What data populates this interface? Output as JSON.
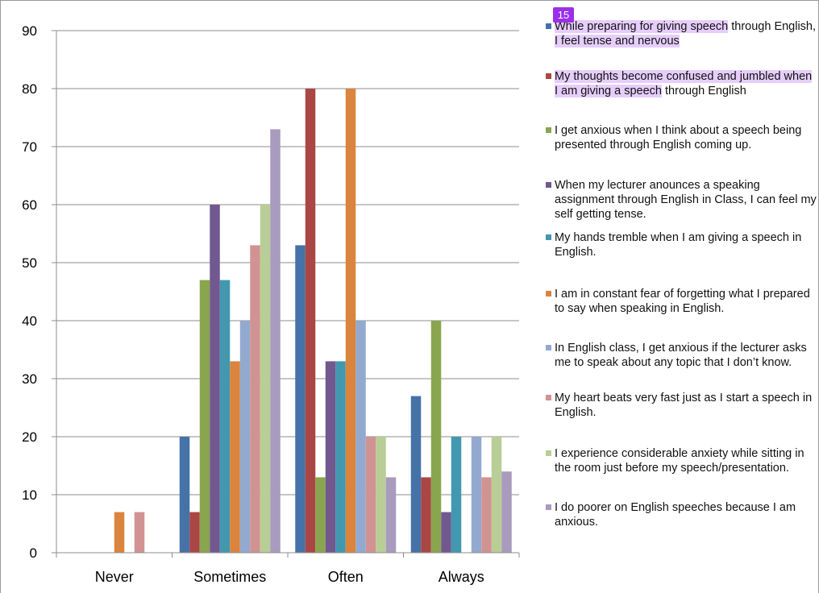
{
  "page_badge": "15",
  "chart_data": {
    "type": "bar",
    "categories": [
      "Never",
      "Sometimes",
      "Often",
      "Always"
    ],
    "ylim": [
      0,
      90
    ],
    "yticks": [
      0,
      10,
      20,
      30,
      40,
      50,
      60,
      70,
      80,
      90
    ],
    "grid": true,
    "legend_position": "right",
    "series": [
      {
        "name": "While preparing for giving speech through English, I feel tense and nervous",
        "color": "#4572a7",
        "values": [
          0,
          20,
          53,
          27
        ]
      },
      {
        "name": "My thoughts become confused and jumbled when I am giving a speech through English",
        "color": "#aa4643",
        "values": [
          0,
          7,
          80,
          13
        ]
      },
      {
        "name": "I get anxious when I think about a speech being presented through English coming up.",
        "color": "#89a54e",
        "values": [
          0,
          47,
          13,
          40
        ]
      },
      {
        "name": "When my lecturer anounces a speaking assignment through English in Class, I can feel my self getting tense.",
        "color": "#71588f",
        "values": [
          0,
          60,
          33,
          7
        ]
      },
      {
        "name": "My hands tremble when I am giving a speech in English.",
        "color": "#4198af",
        "values": [
          0,
          47,
          33,
          20
        ]
      },
      {
        "name": "I am in constant fear of forgetting what I prepared to say when speaking in English.",
        "color": "#db843d",
        "values": [
          7,
          33,
          80,
          0
        ]
      },
      {
        "name": "In English class, I get anxious if the lecturer asks me to speak about any topic that I don’t know.",
        "color": "#93a9cf",
        "values": [
          0,
          40,
          40,
          20
        ]
      },
      {
        "name": "My heart beats very fast just as I start a speech in English.",
        "color": "#d19392",
        "values": [
          7,
          53,
          20,
          13
        ]
      },
      {
        "name": "I experience considerable anxiety while sitting in the room just before my speech/presentation.",
        "color": "#b9cd96",
        "values": [
          0,
          60,
          20,
          20
        ]
      },
      {
        "name": "I do poorer on English speeches because I am anxious.",
        "color": "#a99bbd",
        "values": [
          0,
          73,
          13,
          14
        ]
      }
    ]
  },
  "legend_highlights": [
    [
      "While preparing for giving speech",
      " through English, ",
      "I feel tense and nervous"
    ],
    [
      "My thoughts become confused and jumbled when I am giving a speech",
      " through English",
      ""
    ]
  ]
}
